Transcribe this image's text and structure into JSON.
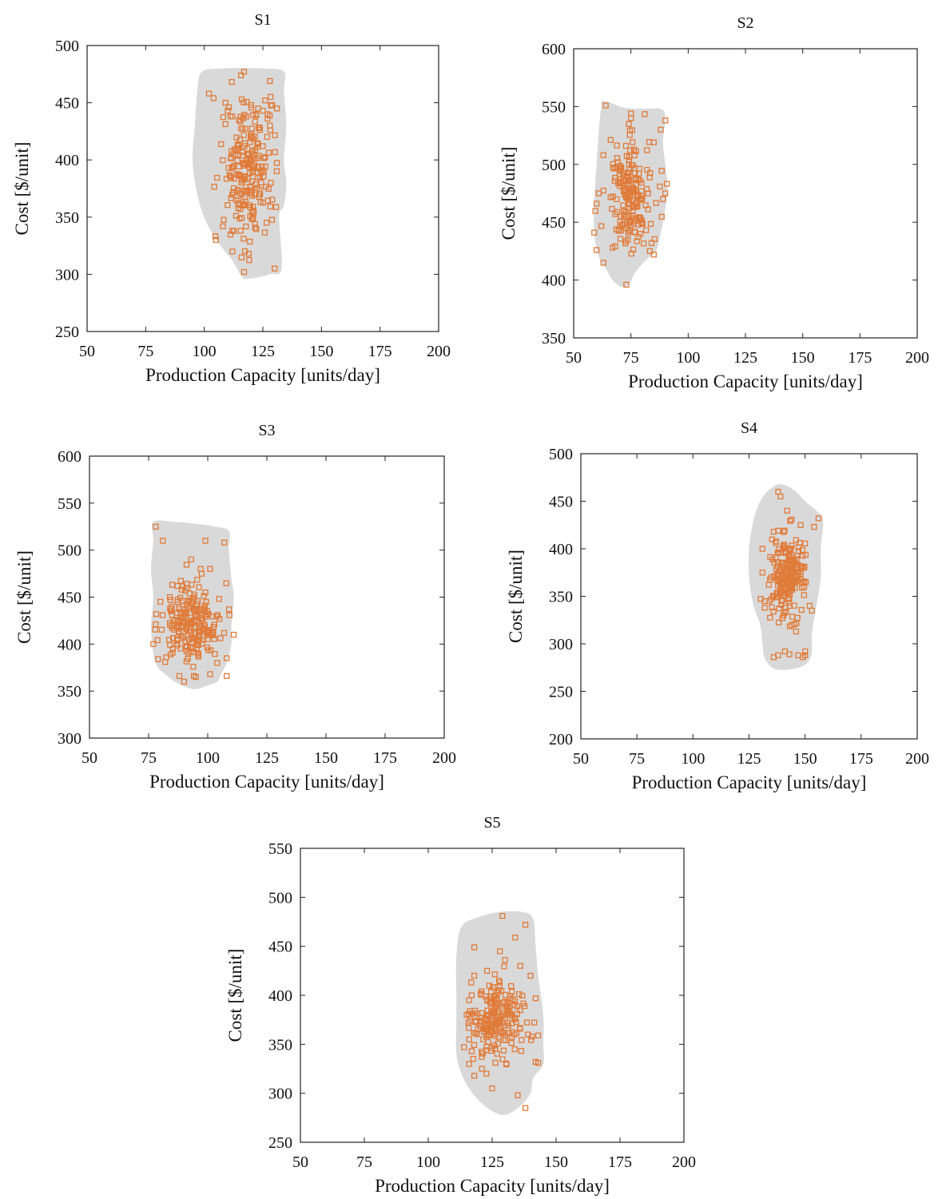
{
  "chart_data": [
    {
      "type": "scatter",
      "title": "S1",
      "xlabel": "Production Capacity [units/day]",
      "ylabel": "Cost [$/unit]",
      "xlim": [
        50,
        200
      ],
      "ylim": [
        250,
        500
      ],
      "xticks": [
        50,
        75,
        100,
        125,
        150,
        175,
        200
      ],
      "yticks": [
        250,
        300,
        350,
        400,
        450,
        500
      ],
      "grid": false,
      "region": [
        [
          99,
          477
        ],
        [
          108,
          480
        ],
        [
          125,
          480
        ],
        [
          134,
          477
        ],
        [
          134,
          460
        ],
        [
          135,
          430
        ],
        [
          134,
          400
        ],
        [
          135,
          380
        ],
        [
          134,
          360
        ],
        [
          132,
          350
        ],
        [
          133,
          305
        ],
        [
          128,
          300
        ],
        [
          119,
          296
        ],
        [
          116,
          298
        ],
        [
          112,
          312
        ],
        [
          107,
          325
        ],
        [
          101,
          345
        ],
        [
          97,
          370
        ],
        [
          95,
          400
        ],
        [
          96,
          430
        ],
        [
          97,
          460
        ]
      ],
      "cluster": {
        "center": [
          119,
          390
        ],
        "spread": [
          5.5,
          33
        ],
        "count": 220
      },
      "outliers": [
        [
          117,
          477
        ],
        [
          128,
          469
        ],
        [
          102,
          458
        ],
        [
          104,
          454
        ],
        [
          109,
          450
        ],
        [
          120,
          448
        ],
        [
          126,
          452
        ],
        [
          129,
          448
        ],
        [
          131,
          445
        ],
        [
          123,
          445
        ],
        [
          125,
          443
        ],
        [
          110,
          443
        ],
        [
          112,
          438
        ],
        [
          127,
          440
        ],
        [
          128,
          430
        ],
        [
          125,
          412
        ],
        [
          123,
          414
        ],
        [
          117,
          302
        ],
        [
          130,
          305
        ],
        [
          112,
          320
        ],
        [
          119,
          318
        ],
        [
          105,
          330
        ],
        [
          108,
          342
        ]
      ]
    },
    {
      "type": "scatter",
      "title": "S2",
      "xlabel": "Production Capacity [units/day]",
      "ylabel": "Cost [$/unit]",
      "xlim": [
        50,
        200
      ],
      "ylim": [
        350,
        600
      ],
      "xticks": [
        50,
        75,
        100,
        125,
        150,
        175,
        200
      ],
      "yticks": [
        350,
        400,
        450,
        500,
        550,
        600
      ],
      "grid": false,
      "region": [
        [
          63,
          555
        ],
        [
          72,
          549
        ],
        [
          80,
          548
        ],
        [
          88,
          548
        ],
        [
          90,
          540
        ],
        [
          89,
          520
        ],
        [
          90,
          500
        ],
        [
          91,
          480
        ],
        [
          90,
          462
        ],
        [
          88,
          440
        ],
        [
          86,
          425
        ],
        [
          82,
          418
        ],
        [
          77,
          407
        ],
        [
          74,
          396
        ],
        [
          71,
          394
        ],
        [
          67,
          400
        ],
        [
          64,
          410
        ],
        [
          61,
          420
        ],
        [
          59,
          440
        ],
        [
          59,
          470
        ],
        [
          60,
          500
        ],
        [
          61,
          530
        ],
        [
          62,
          548
        ]
      ],
      "cluster": {
        "center": [
          75,
          475
        ],
        "spread": [
          5,
          24
        ],
        "count": 190
      },
      "outliers": [
        [
          64,
          551
        ],
        [
          75,
          544
        ],
        [
          75,
          540
        ],
        [
          90,
          538
        ],
        [
          88,
          530
        ],
        [
          85,
          519
        ],
        [
          63,
          508
        ],
        [
          61,
          475
        ],
        [
          60,
          466
        ],
        [
          59,
          441
        ],
        [
          60,
          426
        ],
        [
          63,
          415
        ],
        [
          67,
          428
        ],
        [
          73,
          396
        ],
        [
          85,
          422
        ],
        [
          84,
          432
        ],
        [
          89,
          470
        ],
        [
          90,
          475
        ]
      ]
    },
    {
      "type": "scatter",
      "title": "S3",
      "xlabel": "Production Capacity [units/day]",
      "ylabel": "Cost [$/unit]",
      "xlim": [
        50,
        200
      ],
      "ylim": [
        300,
        600
      ],
      "xticks": [
        50,
        75,
        100,
        125,
        150,
        175,
        200
      ],
      "yticks": [
        300,
        350,
        400,
        450,
        500,
        550,
        600
      ],
      "grid": false,
      "region": [
        [
          77,
          530
        ],
        [
          86,
          530
        ],
        [
          95,
          528
        ],
        [
          103,
          525
        ],
        [
          109,
          520
        ],
        [
          109,
          500
        ],
        [
          110,
          470
        ],
        [
          111,
          450
        ],
        [
          110,
          420
        ],
        [
          110,
          400
        ],
        [
          108,
          380
        ],
        [
          106,
          370
        ],
        [
          104,
          360
        ],
        [
          100,
          356
        ],
        [
          95,
          352
        ],
        [
          91,
          354
        ],
        [
          86,
          360
        ],
        [
          82,
          368
        ],
        [
          79,
          375
        ],
        [
          77,
          390
        ],
        [
          76,
          420
        ],
        [
          77,
          450
        ],
        [
          76,
          480
        ],
        [
          77,
          510
        ]
      ],
      "cluster": {
        "center": [
          93,
          420
        ],
        "spread": [
          6,
          22
        ],
        "count": 210
      },
      "outliers": [
        [
          78,
          525
        ],
        [
          81,
          510
        ],
        [
          99,
          510
        ],
        [
          107,
          508
        ],
        [
          93,
          490
        ],
        [
          97,
          480
        ],
        [
          101,
          480
        ],
        [
          85,
          463
        ],
        [
          80,
          445
        ],
        [
          84,
          450
        ],
        [
          78,
          421
        ],
        [
          77,
          400
        ],
        [
          79,
          384
        ],
        [
          82,
          381
        ],
        [
          88,
          366
        ],
        [
          90,
          360
        ],
        [
          95,
          365
        ],
        [
          101,
          368
        ],
        [
          108,
          366
        ],
        [
          104,
          380
        ],
        [
          108,
          385
        ],
        [
          111,
          410
        ],
        [
          109,
          437
        ]
      ]
    },
    {
      "type": "scatter",
      "title": "S4",
      "xlabel": "Production Capacity [units/day]",
      "ylabel": "Cost [$/unit]",
      "xlim": [
        50,
        200
      ],
      "ylim": [
        200,
        500
      ],
      "xticks": [
        50,
        75,
        100,
        125,
        150,
        175,
        200
      ],
      "yticks": [
        200,
        250,
        300,
        350,
        400,
        450,
        500
      ],
      "grid": false,
      "region": [
        [
          134,
          462
        ],
        [
          139,
          468
        ],
        [
          145,
          462
        ],
        [
          150,
          450
        ],
        [
          155,
          440
        ],
        [
          158,
          430
        ],
        [
          157,
          400
        ],
        [
          157,
          370
        ],
        [
          155,
          340
        ],
        [
          153,
          310
        ],
        [
          153,
          290
        ],
        [
          150,
          278
        ],
        [
          143,
          273
        ],
        [
          136,
          274
        ],
        [
          132,
          285
        ],
        [
          131,
          300
        ],
        [
          130,
          320
        ],
        [
          127,
          340
        ],
        [
          125,
          370
        ],
        [
          125,
          400
        ],
        [
          127,
          430
        ],
        [
          130,
          450
        ]
      ],
      "cluster": {
        "center": [
          142,
          372
        ],
        "spread": [
          4,
          20
        ],
        "count": 200
      },
      "outliers": [
        [
          138,
          460
        ],
        [
          139,
          455
        ],
        [
          142,
          440
        ],
        [
          156,
          432
        ],
        [
          154,
          423
        ],
        [
          148,
          425
        ],
        [
          136,
          418
        ],
        [
          138,
          419
        ],
        [
          131,
          400
        ],
        [
          131,
          375
        ],
        [
          132,
          345
        ],
        [
          132,
          338
        ],
        [
          152,
          340
        ],
        [
          153,
          335
        ],
        [
          146,
          313
        ],
        [
          144,
          320
        ],
        [
          141,
          292
        ],
        [
          143,
          289
        ],
        [
          138,
          288
        ],
        [
          136,
          286
        ],
        [
          149,
          286
        ],
        [
          150,
          288
        ],
        [
          147,
          288
        ],
        [
          150,
          292
        ]
      ]
    },
    {
      "type": "scatter",
      "title": "S5",
      "xlabel": "Production Capacity [units/day]",
      "ylabel": "Cost [$/unit]",
      "xlim": [
        50,
        200
      ],
      "ylim": [
        250,
        550
      ],
      "xticks": [
        50,
        75,
        100,
        125,
        150,
        175,
        200
      ],
      "yticks": [
        250,
        300,
        350,
        400,
        450,
        500,
        550
      ],
      "grid": false,
      "region": [
        [
          113,
          470
        ],
        [
          120,
          480
        ],
        [
          128,
          485
        ],
        [
          137,
          485
        ],
        [
          141,
          478
        ],
        [
          142,
          450
        ],
        [
          143,
          420
        ],
        [
          145,
          380
        ],
        [
          145,
          350
        ],
        [
          145,
          330
        ],
        [
          141,
          315
        ],
        [
          140,
          300
        ],
        [
          136,
          287
        ],
        [
          130,
          278
        ],
        [
          125,
          282
        ],
        [
          120,
          292
        ],
        [
          116,
          305
        ],
        [
          113,
          320
        ],
        [
          111,
          340
        ],
        [
          111,
          370
        ],
        [
          111,
          400
        ],
        [
          111,
          440
        ]
      ],
      "cluster": {
        "center": [
          127,
          378
        ],
        "spread": [
          5,
          20
        ],
        "count": 200
      },
      "outliers": [
        [
          129,
          481
        ],
        [
          138,
          472
        ],
        [
          134,
          459
        ],
        [
          118,
          449
        ],
        [
          128,
          445
        ],
        [
          130,
          436
        ],
        [
          136,
          430
        ],
        [
          123,
          425
        ],
        [
          118,
          420
        ],
        [
          117,
          400
        ],
        [
          116,
          395
        ],
        [
          115,
          380
        ],
        [
          116,
          355
        ],
        [
          117,
          343
        ],
        [
          116,
          330
        ],
        [
          118,
          318
        ],
        [
          121,
          325
        ],
        [
          125,
          305
        ],
        [
          135,
          298
        ],
        [
          138,
          285
        ],
        [
          142,
          332
        ],
        [
          143,
          331
        ],
        [
          143,
          359
        ],
        [
          139,
          360
        ],
        [
          142,
          397
        ],
        [
          140,
          420
        ]
      ]
    }
  ],
  "colors": {
    "marker": "#e07b39",
    "region": "#d9d9d9",
    "frame": "#222222",
    "text": "#111111"
  }
}
